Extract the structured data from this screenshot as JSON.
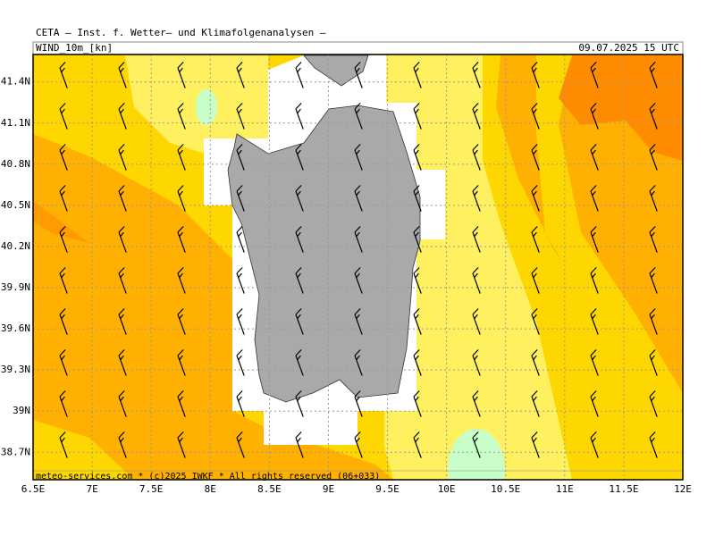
{
  "header": {
    "title": "CETA — Inst. f. Wetter— und Klimafolgenanalysen —",
    "field": "WIND_10m_[kn]",
    "valid_time": "09.07.2025 15 UTC"
  },
  "map": {
    "xlim": [
      6.5,
      12
    ],
    "ylim": [
      38.5,
      41.6
    ],
    "xticks": [
      {
        "value": 6.5,
        "label": "6.5E"
      },
      {
        "value": 7,
        "label": "7E"
      },
      {
        "value": 7.5,
        "label": "7.5E"
      },
      {
        "value": 8,
        "label": "8E"
      },
      {
        "value": 8.5,
        "label": "8.5E"
      },
      {
        "value": 9,
        "label": "9E"
      },
      {
        "value": 9.5,
        "label": "9.5E"
      },
      {
        "value": 10,
        "label": "10E"
      },
      {
        "value": 10.5,
        "label": "10.5E"
      },
      {
        "value": 11,
        "label": "11E"
      },
      {
        "value": 11.5,
        "label": "11.5E"
      },
      {
        "value": 12,
        "label": "12E"
      }
    ],
    "yticks": [
      {
        "value": 41.4,
        "label": "41.4N"
      },
      {
        "value": 41.1,
        "label": "41.1N"
      },
      {
        "value": 40.8,
        "label": "40.8N"
      },
      {
        "value": 40.5,
        "label": "40.5N"
      },
      {
        "value": 40.2,
        "label": "40.2N"
      },
      {
        "value": 39.9,
        "label": "39.9N"
      },
      {
        "value": 39.6,
        "label": "39.6N"
      },
      {
        "value": 39.3,
        "label": "39.3N"
      },
      {
        "value": 39,
        "label": "39N"
      },
      {
        "value": 38.7,
        "label": "38.7N"
      }
    ],
    "footer": "meteo-services.com * (c)2025 IWKF * All rights reserved (06+033)"
  }
}
